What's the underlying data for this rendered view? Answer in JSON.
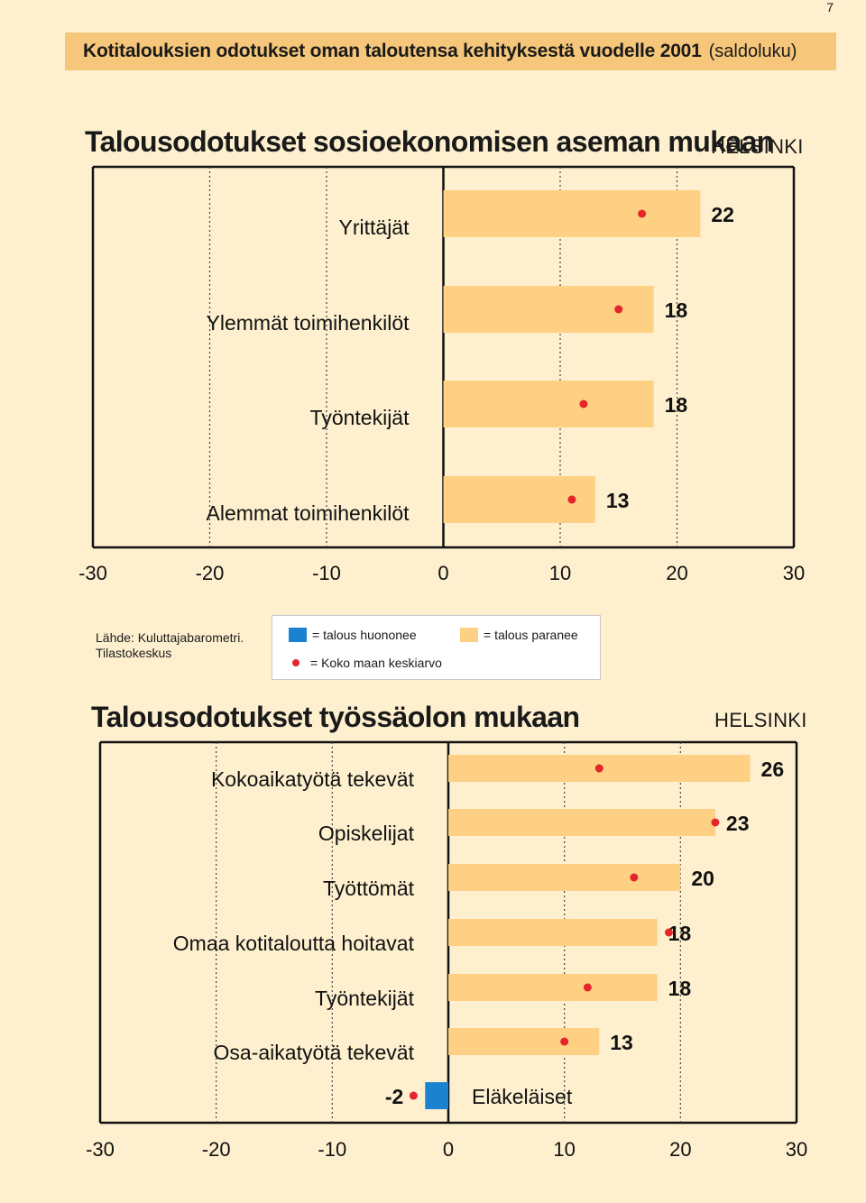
{
  "page_number": "7",
  "banner": {
    "title": "Kotitalouksien odotukset oman taloutensa kehityksestä vuodelle 2001",
    "unit": "(saldoluku)"
  },
  "source": {
    "line1": "Lähde: Kuluttajabarometri.",
    "line2": "Tilastokeskus"
  },
  "legend": {
    "negative": "= talous huononee",
    "positive": "= talous paranee",
    "average": "= Koko maan keskiarvo"
  },
  "colors": {
    "background": "#fef0cf",
    "banner": "#f6c77a",
    "positive_bar": "#fdd083",
    "negative_bar": "#1a82cf",
    "average_marker": "#e5242b"
  },
  "chart_data": [
    {
      "type": "bar",
      "orientation": "horizontal",
      "title": "Talousodotukset sosioekonomisen aseman mukaan",
      "region": "HELSINKI",
      "xlim": [
        -30,
        30
      ],
      "x_ticks": [
        "-30",
        "-20",
        "-10",
        "0",
        "10",
        "20",
        "30"
      ],
      "grid": "dotted vertical",
      "categories": [
        "Yrittäjät",
        "Ylemmät toimihenkilöt",
        "Työntekijät",
        "Alemmat toimihenkilöt"
      ],
      "values": [
        22,
        18,
        18,
        13
      ],
      "value_labels": [
        "22",
        "18",
        "18",
        "13"
      ],
      "national_average": [
        17,
        15,
        12,
        11
      ]
    },
    {
      "type": "bar",
      "orientation": "horizontal",
      "title": "Talousodotukset työssäolon mukaan",
      "region": "HELSINKI",
      "xlim": [
        -30,
        30
      ],
      "x_ticks": [
        "-30",
        "-20",
        "-10",
        "0",
        "10",
        "20",
        "30"
      ],
      "grid": "dotted vertical",
      "categories": [
        "Kokoaikatyötä tekevät",
        "Opiskelijat",
        "Työttömät",
        "Omaa kotitaloutta hoitavat",
        "Työntekijät",
        "Osa-aikatyötä tekevät",
        "Eläkeläiset"
      ],
      "values": [
        26,
        23,
        20,
        18,
        18,
        13,
        -2
      ],
      "value_labels": [
        "26",
        "23",
        "20",
        "18",
        "18",
        "13",
        "-2"
      ],
      "national_average": [
        13,
        23,
        16,
        19,
        12,
        10,
        -3
      ]
    }
  ]
}
